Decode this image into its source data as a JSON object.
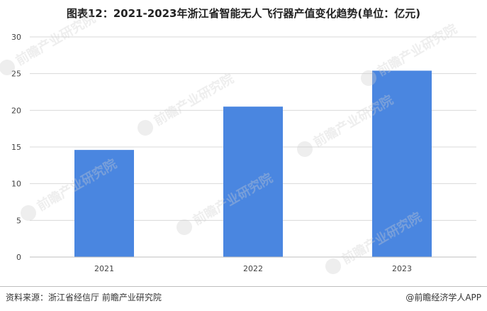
{
  "chart_data": {
    "type": "bar",
    "title": "图表12：2021-2023年浙江省智能无人飞行器产值变化趋势(单位：亿元)",
    "categories": [
      "2021",
      "2022",
      "2023"
    ],
    "values": [
      14.6,
      20.5,
      25.4
    ],
    "ylim": [
      0,
      30
    ],
    "yticks": [
      0,
      5,
      10,
      15,
      20,
      25,
      30
    ],
    "grid": true,
    "legend": "none",
    "bar_color": "#4a86e0",
    "grid_color": "#d9d9d9"
  },
  "footer": {
    "source": "资料来源：浙江省经信厅 前瞻产业研究院",
    "credit": "@前瞻经济学人APP"
  },
  "watermark": {
    "text": "前瞻产业研究院",
    "icon": "qianzhan-logo-icon"
  }
}
